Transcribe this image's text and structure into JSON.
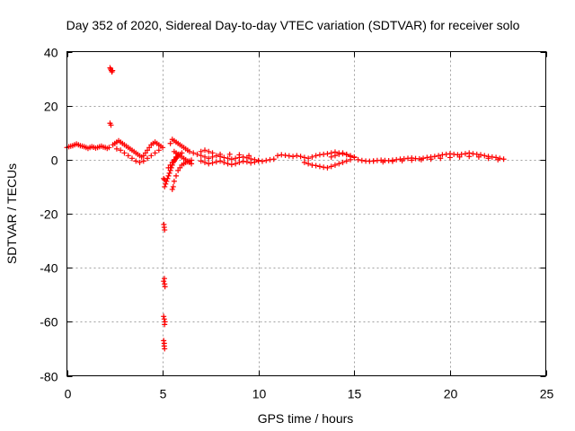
{
  "chart_data": {
    "type": "scatter",
    "title": "Day 352 of 2020, Sidereal Day-to-day VTEC variation (SDTVAR) for receiver solo",
    "xlabel": "GPS time / hours",
    "ylabel": "SDTVAR / TECUs",
    "xlim": [
      0,
      25
    ],
    "ylim": [
      -80,
      40
    ],
    "xticks": [
      0,
      5,
      10,
      15,
      20,
      25
    ],
    "yticks": [
      -80,
      -60,
      -40,
      -20,
      0,
      20,
      40
    ],
    "xtick_labels": [
      "0",
      "5",
      "10",
      "15",
      "20",
      "25"
    ],
    "ytick_labels": [
      "-80",
      "-60",
      "-40",
      "-20",
      "0",
      "20",
      "40"
    ],
    "grid": true,
    "marker": "+",
    "color": "#ff0000",
    "series": [
      {
        "name": "SDTVAR",
        "x": [
          0.0,
          0.1,
          0.2,
          0.3,
          0.4,
          0.5,
          0.6,
          0.7,
          0.8,
          0.9,
          1.0,
          1.1,
          1.2,
          1.3,
          1.4,
          1.5,
          1.6,
          1.7,
          1.8,
          1.9,
          2.0,
          2.1,
          2.2,
          2.25,
          2.28,
          2.32,
          2.35,
          2.38,
          2.25,
          2.3,
          2.4,
          2.5,
          2.6,
          2.7,
          2.8,
          2.9,
          3.0,
          3.1,
          3.2,
          3.3,
          3.4,
          3.5,
          3.6,
          3.7,
          3.8,
          3.9,
          4.0,
          4.1,
          4.2,
          4.3,
          4.4,
          4.5,
          4.6,
          4.7,
          4.8,
          4.9,
          5.0,
          2.6,
          2.8,
          3.0,
          3.2,
          3.4,
          3.6,
          3.8,
          4.0,
          4.2,
          4.4,
          4.6,
          4.8,
          5.05,
          5.08,
          5.1,
          5.05,
          5.1,
          5.12,
          5.05,
          5.08,
          5.1,
          5.05,
          5.08,
          5.1,
          5.06,
          5.09,
          5.12,
          5.08,
          5.1,
          5.1,
          5.15,
          5.2,
          5.25,
          5.3,
          5.35,
          5.4,
          5.45,
          5.5,
          5.55,
          5.6,
          5.65,
          5.7,
          5.75,
          5.8,
          5.9,
          6.0,
          5.5,
          5.55,
          5.6,
          5.7,
          5.8,
          5.9,
          6.0,
          6.1,
          6.2,
          6.3,
          6.4,
          6.5,
          5.6,
          5.7,
          5.8,
          5.9,
          6.0,
          6.1,
          6.2,
          6.3,
          6.4,
          6.5,
          5.4,
          5.5,
          5.6,
          5.7,
          5.8,
          5.9,
          6.0,
          6.1,
          6.2,
          6.3,
          6.4,
          5.3,
          5.4,
          5.5,
          5.6,
          5.7,
          5.8,
          6.6,
          6.8,
          7.0,
          7.2,
          7.4,
          7.6,
          7.8,
          8.0,
          8.2,
          8.4,
          8.6,
          8.8,
          9.0,
          9.2,
          9.4,
          9.6,
          9.8,
          10.0,
          10.2,
          10.4,
          10.6,
          10.8,
          7.0,
          7.2,
          7.4,
          7.6,
          7.8,
          8.0,
          8.2,
          8.4,
          8.6,
          8.8,
          9.0,
          9.2,
          9.4,
          9.6,
          9.8,
          10.0,
          7.0,
          7.2,
          7.4,
          7.6,
          8.0,
          8.5,
          9.0,
          9.5,
          11.0,
          11.2,
          11.4,
          11.6,
          11.8,
          12.0,
          12.2,
          12.4,
          12.6,
          12.8,
          13.0,
          13.2,
          13.4,
          13.6,
          13.8,
          14.0,
          14.2,
          14.4,
          14.6,
          14.8,
          15.0,
          12.4,
          12.6,
          12.8,
          13.0,
          13.2,
          13.4,
          13.6,
          13.8,
          14.0,
          14.2,
          14.4,
          14.6,
          14.8,
          13.8,
          14.0,
          14.2,
          14.4,
          14.6,
          14.8,
          15.0,
          15.2,
          15.4,
          15.6,
          15.8,
          16.0,
          16.2,
          16.4,
          16.6,
          16.8,
          17.0,
          17.2,
          17.4,
          17.6,
          17.8,
          18.0,
          18.2,
          18.4,
          18.6,
          18.8,
          19.0,
          19.2,
          19.4,
          19.6,
          19.8,
          20.0,
          20.2,
          20.4,
          20.6,
          20.8,
          21.0,
          21.2,
          21.4,
          21.6,
          21.8,
          22.0,
          22.2,
          22.4,
          22.6,
          22.8,
          16.0,
          16.5,
          17.0,
          17.5,
          18.0,
          18.5,
          19.0,
          19.5,
          20.0,
          20.5,
          21.0,
          21.5,
          22.0,
          22.5
        ],
        "y": [
          4.5,
          4.8,
          5.0,
          5.2,
          5.5,
          5.8,
          5.5,
          5.2,
          5.0,
          4.8,
          4.5,
          4.2,
          4.5,
          4.8,
          4.6,
          4.3,
          4.5,
          4.8,
          5.0,
          4.7,
          4.5,
          4.2,
          4.5,
          34,
          33.5,
          33,
          32.5,
          33,
          13.5,
          12.8,
          5.5,
          6.0,
          6.5,
          7.0,
          6.5,
          6.0,
          5.5,
          5.0,
          4.5,
          4.0,
          3.5,
          3.0,
          2.5,
          2.0,
          1.5,
          1.0,
          1.5,
          2.5,
          3.5,
          4.5,
          5.5,
          6.0,
          6.5,
          6.0,
          5.5,
          5.0,
          4.5,
          4.0,
          3.5,
          2.5,
          1.5,
          0.5,
          -0.5,
          -1.0,
          -0.5,
          0.5,
          1.5,
          2.5,
          3.5,
          -7,
          -25,
          -26,
          -45,
          -46,
          -47,
          -58,
          -59,
          -61,
          -67,
          -68,
          -70,
          -24,
          -44,
          -60,
          -69,
          -7.5,
          -10,
          -9,
          -8,
          -7,
          -6,
          -5,
          -4,
          -3,
          -2,
          -1,
          -0.5,
          0,
          0.5,
          1.0,
          1.5,
          2.0,
          2.5,
          -11,
          -10,
          -8,
          -6,
          -4,
          -3,
          -2,
          -1.5,
          -1.0,
          -0.8,
          -0.5,
          -0.2,
          3.0,
          2.5,
          2.0,
          1.5,
          1.0,
          0.5,
          0.0,
          -0.5,
          -1.0,
          -1.5,
          6.0,
          7.5,
          7.0,
          6.5,
          6.0,
          5.5,
          5.0,
          4.5,
          4.0,
          3.5,
          3.0,
          -3.0,
          -2.0,
          -1.0,
          0.0,
          1.0,
          2.0,
          2.5,
          2.0,
          1.5,
          1.0,
          0.5,
          1.0,
          1.5,
          1.2,
          0.8,
          0.5,
          0.2,
          0.5,
          0.8,
          1.0,
          0.7,
          0.3,
          0.0,
          -0.3,
          -0.6,
          -0.3,
          0.0,
          0.2,
          -0.5,
          -1.0,
          -1.5,
          -1.2,
          -0.8,
          -0.5,
          -1.0,
          -1.5,
          -1.8,
          -1.5,
          -1.0,
          -0.6,
          -0.8,
          -1.2,
          -0.9,
          -0.5,
          3.0,
          3.5,
          3.0,
          2.5,
          2.0,
          2.0,
          1.8,
          1.5,
          1.5,
          1.8,
          1.6,
          1.4,
          1.2,
          1.5,
          1.2,
          0.8,
          0.5,
          1.0,
          1.5,
          1.8,
          2.0,
          2.2,
          2.5,
          2.8,
          2.5,
          2.2,
          1.8,
          1.2,
          0.8,
          -1.0,
          -1.5,
          -2.0,
          -2.2,
          -2.5,
          -2.8,
          -3.0,
          -2.5,
          -2.0,
          -1.5,
          -1.0,
          -0.5,
          0.0,
          1.0,
          1.5,
          2.0,
          2.5,
          2.0,
          1.5,
          1.0,
          0.0,
          -0.3,
          -0.5,
          -0.6,
          -0.5,
          -0.3,
          -0.2,
          -0.3,
          -0.4,
          -0.2,
          0.0,
          0.2,
          0.3,
          0.5,
          0.6,
          0.4,
          0.3,
          0.5,
          0.8,
          1.0,
          1.2,
          1.5,
          1.8,
          2.0,
          2.2,
          2.0,
          1.8,
          2.0,
          2.2,
          2.5,
          2.2,
          2.0,
          1.8,
          1.5,
          1.2,
          1.0,
          0.8,
          0.5,
          0.2,
          -0.5,
          -0.8,
          -0.6,
          -0.4,
          -0.2,
          0.0,
          0.2,
          0.5,
          0.8,
          1.0,
          1.2,
          1.0,
          0.5,
          0.0
        ]
      }
    ]
  }
}
